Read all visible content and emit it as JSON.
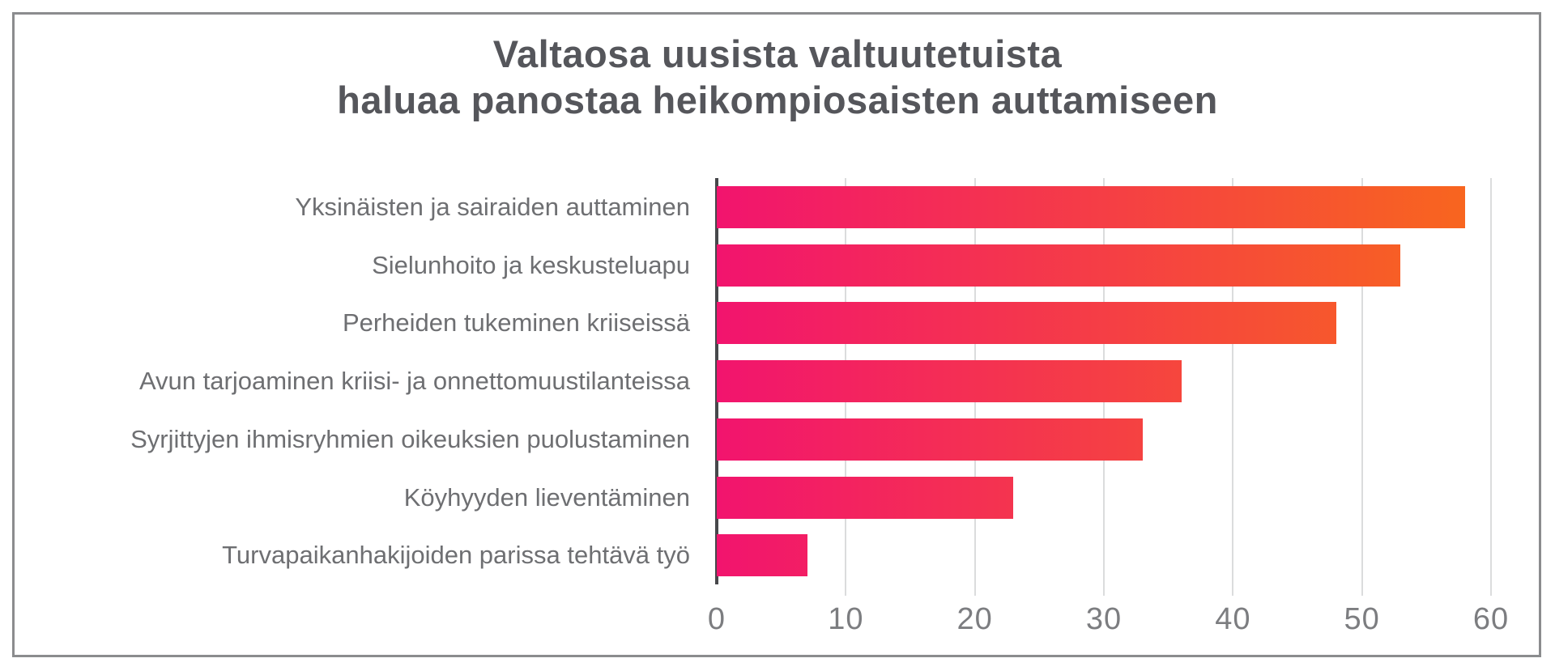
{
  "title": {
    "line1": "Valtaosa uusista valtuutetuista",
    "line2": "haluaa panostaa heikompiosaisten auttamiseen"
  },
  "chart_data": {
    "type": "bar",
    "orientation": "horizontal",
    "title": "Valtaosa uusista valtuutetuista haluaa panostaa heikompiosaisten auttamiseen",
    "categories": [
      "Yksinäisten ja sairaiden auttaminen",
      "Sielunhoito ja keskusteluapu",
      "Perheiden tukeminen kriiseissä",
      "Avun tarjoaminen kriisi- ja onnettomuustilanteissa",
      "Syrjittyjen ihmisryhmien oikeuksien puolustaminen",
      "Köyhyyden lieventäminen",
      "Turvapaikanhakijoiden parissa tehtävä työ"
    ],
    "values": [
      58,
      53,
      48,
      36,
      33,
      23,
      7
    ],
    "xticks": [
      0,
      10,
      20,
      30,
      40,
      50,
      60
    ],
    "xlim": [
      0,
      60
    ],
    "grid": true,
    "legend": false,
    "xlabel": "",
    "ylabel": ""
  },
  "colors": {
    "bar_gradient_start": "#f2146e",
    "bar_gradient_end": "#f8681c",
    "title_text": "#55565b",
    "category_text": "#6e6f72",
    "tick_text": "#7c7d80",
    "gridline": "#dbdcdd",
    "axis_line": "#47484b",
    "frame_border": "#8b8c8e",
    "background": "#ffffff"
  }
}
